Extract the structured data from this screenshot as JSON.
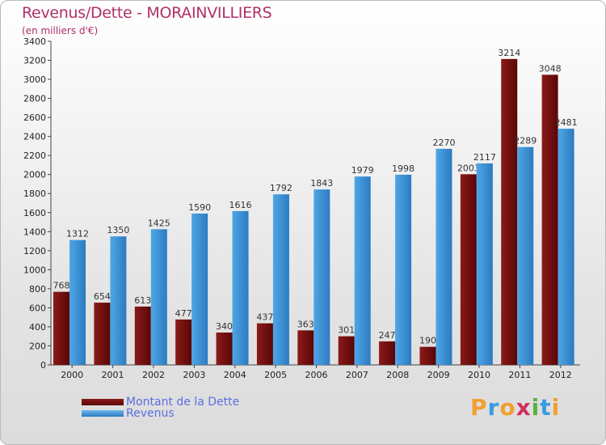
{
  "title": "Revenus/Dette - MORAINVILLIERS",
  "subtitle": "(en milliers d'€)",
  "legend": {
    "debt_label": "Montant de la Dette",
    "revenue_label": "Revenus"
  },
  "logo_text": "Proxiti",
  "colors": {
    "debt": "#8b1a1a",
    "debt_dark": "#5a0606",
    "revenue": "#4ea6e6",
    "revenue_dark": "#2c7bc0",
    "title": "#b0306a",
    "legend_text": "#5a6ee0"
  },
  "chart_data": {
    "type": "bar",
    "categories": [
      "2000",
      "2001",
      "2002",
      "2003",
      "2004",
      "2005",
      "2006",
      "2007",
      "2008",
      "2009",
      "2010",
      "2011",
      "2012"
    ],
    "series": [
      {
        "name": "Montant de la Dette",
        "values": [
          768,
          654,
          613,
          477,
          340,
          437,
          363,
          301,
          247,
          190,
          2003,
          3214,
          3048
        ]
      },
      {
        "name": "Revenus",
        "values": [
          1312,
          1350,
          1425,
          1590,
          1616,
          1792,
          1843,
          1979,
          1998,
          2270,
          2117,
          2289,
          2481
        ]
      }
    ],
    "ylim": [
      0,
      3400
    ],
    "ytick_step": 200,
    "grid": false,
    "legend_position": "bottom-left"
  }
}
